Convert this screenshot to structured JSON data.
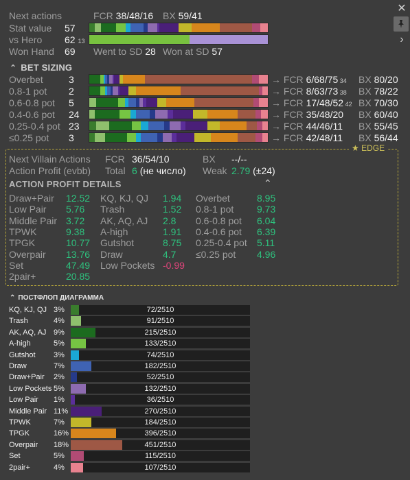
{
  "colors": {
    "kq": "#3a7c2d",
    "trash": "#8fc06d",
    "ak": "#1c6b1f",
    "ahigh": "#76c443",
    "gutshot": "#1aa7d4",
    "draw": "#3f63b3",
    "drawpair": "#263a8a",
    "lowpockets": "#8e6bb0",
    "lowpair": "#5b2e9a",
    "middlepair": "#4a1f78",
    "tpwk": "#c2b82a",
    "tpgk": "#d7861c",
    "overpair": "#9e5845",
    "set": "#b14b74",
    "twopair": "#e8828f",
    "bg": "#3c3c3c"
  },
  "top": {
    "next_actions_label": "Next actions",
    "fcr_label": "FCR",
    "fcr_value": "38/48/16",
    "bx_label": "BX",
    "bx_value": "59/41",
    "stat_value_label": "Stat value",
    "stat_value": "57",
    "vs_hero_label": "vs Hero",
    "vs_hero_value": "62",
    "vs_hero_small": "13",
    "won_hand_label": "Won Hand",
    "won_hand_value": "69",
    "went_sd_label": "Went to SD",
    "went_sd_value": "28",
    "won_sd_label": "Won at SD",
    "won_sd_value": "57",
    "vs_hero_split": {
      "green": 0.56,
      "purple": 0.44
    }
  },
  "bet_sizing": {
    "title": "BET SIZING",
    "rows": [
      {
        "label": "Overbet",
        "count": "3",
        "fcr": "6/68/75",
        "fcr_small": "34",
        "bx": "80/20"
      },
      {
        "label": "0.8-1 pot",
        "count": "2",
        "fcr": "8/63/73",
        "fcr_small": "38",
        "bx": "78/22"
      },
      {
        "label": "0.6-0.8 pot",
        "count": "5",
        "fcr": "17/48/52",
        "fcr_small": "42",
        "bx": "70/30"
      },
      {
        "label": "0.4-0.6 pot",
        "count": "24",
        "fcr": "35/48/20",
        "fcr_small": "",
        "bx": "60/40"
      },
      {
        "label": "0.25-0.4 pot",
        "count": "23",
        "fcr": "44/46/11",
        "fcr_small": "",
        "bx": "55/45"
      },
      {
        "label": "≤0.25 pot",
        "count": "3",
        "fcr": "42/48/11",
        "fcr_small": "",
        "bx": "56/44"
      }
    ],
    "arrow_fcr": "→ FCR",
    "bx_label": "BX"
  },
  "edge": {
    "title": "EDGE",
    "next_villain_label": "Next Villain Actions",
    "fcr_label": "FCR",
    "fcr_value": "36/54/10",
    "bx_label": "BX",
    "bx_value": "--/--",
    "action_profit_label": "Action Profit (evbb)",
    "total_label": "Total",
    "total_value": "6",
    "total_note": "(не число)",
    "weak_label": "Weak",
    "weak_value": "2.79",
    "weak_note": "(±24)",
    "details_title": "ACTION PROFIT DETAILS",
    "col1": [
      {
        "label": "Draw+Pair",
        "value": "12.52"
      },
      {
        "label": "Low Pair",
        "value": "5.76"
      },
      {
        "label": "Middle Pair",
        "value": "3.72"
      },
      {
        "label": "TPWK",
        "value": "9.38"
      },
      {
        "label": "TPGK",
        "value": "10.77"
      },
      {
        "label": "Overpair",
        "value": "13.76"
      },
      {
        "label": "Set",
        "value": "47.49"
      },
      {
        "label": "2pair+",
        "value": "20.85"
      }
    ],
    "col2": [
      {
        "label": "KQ, KJ, QJ",
        "value": "1.94"
      },
      {
        "label": "Trash",
        "value": "1.52"
      },
      {
        "label": "AK, AQ, AJ",
        "value": "2.8"
      },
      {
        "label": "A-high",
        "value": "1.91"
      },
      {
        "label": "Gutshot",
        "value": "8.75"
      },
      {
        "label": "Draw",
        "value": "4.7"
      },
      {
        "label": "Low Pockets",
        "value": "-0.99"
      }
    ],
    "col3": [
      {
        "label": "Overbet",
        "value": "8.95"
      },
      {
        "label": "0.8-1 pot",
        "value": "9.73"
      },
      {
        "label": "0.6-0.8 pot",
        "value": "6.04"
      },
      {
        "label": "0.4-0.6 pot",
        "value": "6.39"
      },
      {
        "label": "0.25-0.4 pot",
        "value": "5.11"
      },
      {
        "label": "≤0.25 pot",
        "value": "4.96"
      }
    ]
  },
  "postflop": {
    "title": "ПОСТФЛОП ДИАГРАММА",
    "rows": [
      {
        "label": "KQ, KJ, QJ",
        "pct": "3%",
        "count": "72/2510",
        "frac": 0.029,
        "color": "#3a7c2d"
      },
      {
        "label": "Trash",
        "pct": "4%",
        "count": "91/2510",
        "frac": 0.036,
        "color": "#8fc06d"
      },
      {
        "label": "AK, AQ, AJ",
        "pct": "9%",
        "count": "215/2510",
        "frac": 0.086,
        "color": "#1c6b1f"
      },
      {
        "label": "A-high",
        "pct": "5%",
        "count": "133/2510",
        "frac": 0.053,
        "color": "#76c443"
      },
      {
        "label": "Gutshot",
        "pct": "3%",
        "count": "74/2510",
        "frac": 0.029,
        "color": "#1aa7d4"
      },
      {
        "label": "Draw",
        "pct": "7%",
        "count": "182/2510",
        "frac": 0.073,
        "color": "#3f63b3"
      },
      {
        "label": "Draw+Pair",
        "pct": "2%",
        "count": "52/2510",
        "frac": 0.021,
        "color": "#263a8a"
      },
      {
        "label": "Low Pockets",
        "pct": "5%",
        "count": "132/2510",
        "frac": 0.053,
        "color": "#8e6bb0"
      },
      {
        "label": "Low Pair",
        "pct": "1%",
        "count": "36/2510",
        "frac": 0.014,
        "color": "#5b2e9a"
      },
      {
        "label": "Middle Pair",
        "pct": "11%",
        "count": "270/2510",
        "frac": 0.108,
        "color": "#4a1f78"
      },
      {
        "label": "TPWK",
        "pct": "7%",
        "count": "184/2510",
        "frac": 0.073,
        "color": "#c2b82a"
      },
      {
        "label": "TPGK",
        "pct": "16%",
        "count": "396/2510",
        "frac": 0.158,
        "color": "#d7861c"
      },
      {
        "label": "Overpair",
        "pct": "18%",
        "count": "451/2510",
        "frac": 0.18,
        "color": "#9e5845"
      },
      {
        "label": "Set",
        "pct": "5%",
        "count": "115/2510",
        "frac": 0.046,
        "color": "#b14b74"
      },
      {
        "label": "2pair+",
        "pct": "4%",
        "count": "107/2510",
        "frac": 0.043,
        "color": "#e8828f"
      }
    ]
  },
  "icons": {
    "close": "close-icon",
    "pin": "pin-icon",
    "next": "chevron-right-icon",
    "collapse": "chevron-up-icon",
    "star": "star-icon"
  }
}
